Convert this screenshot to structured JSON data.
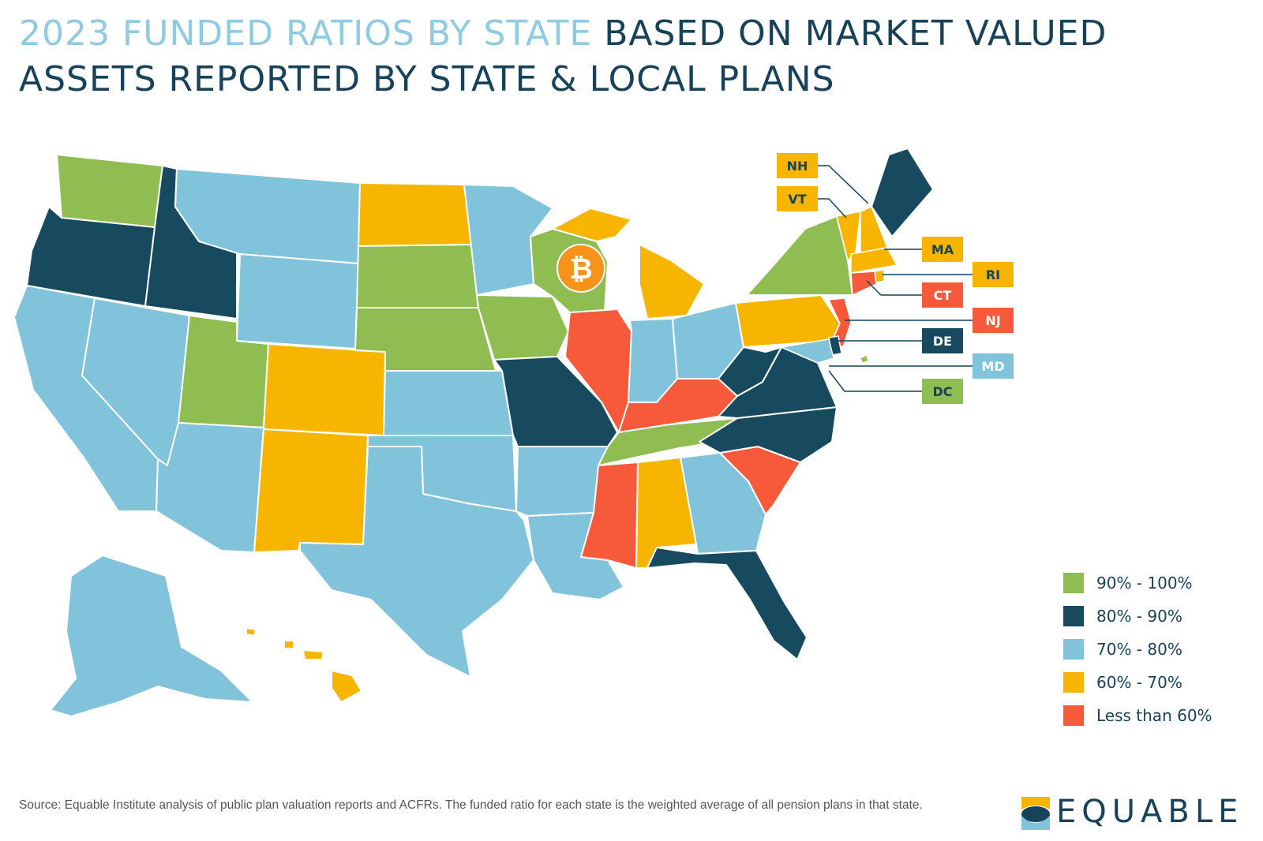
{
  "title": {
    "part1": "2023 FUNDED RATIOS BY STATE ",
    "part2": "BASED ON MARKET VALUED ASSETS REPORTED BY STATE & LOCAL PLANS"
  },
  "colors": {
    "g90": "#8fbd52",
    "g80": "#174a5e",
    "g70": "#82c3dc",
    "g60": "#f7b500",
    "lt60": "#f7593b"
  },
  "legend": [
    {
      "key": "g90",
      "label": "90% - 100%"
    },
    {
      "key": "g80",
      "label": "80% - 90%"
    },
    {
      "key": "g70",
      "label": "70% - 80%"
    },
    {
      "key": "g60",
      "label": "60% - 70%"
    },
    {
      "key": "lt60",
      "label": "Less than 60%"
    }
  ],
  "state_categories": {
    "WA": "g90",
    "OR": "g80",
    "ID": "g80",
    "MT": "g70",
    "WY": "g70",
    "CA": "g70",
    "NV": "g70",
    "UT": "g90",
    "AZ": "g70",
    "CO": "g60",
    "NM": "g60",
    "ND": "g60",
    "SD": "g90",
    "NE": "g90",
    "KS": "g70",
    "OK": "g70",
    "TX": "g70",
    "MN": "g70",
    "IA": "g90",
    "MO": "g80",
    "AR": "g70",
    "LA": "g70",
    "WI": "g90",
    "IL": "lt60",
    "MI": "g60",
    "IN": "g70",
    "OH": "g70",
    "KY": "lt60",
    "TN": "g90",
    "MS": "lt60",
    "AL": "g60",
    "GA": "g70",
    "FL": "g80",
    "SC": "lt60",
    "NC": "g80",
    "VA": "g80",
    "WV": "g80",
    "PA": "g60",
    "NY": "g90",
    "ME": "g80",
    "AK": "g70",
    "HI": "g60"
  },
  "callouts": [
    {
      "label": "NH",
      "key": "g60"
    },
    {
      "label": "VT",
      "key": "g60"
    },
    {
      "label": "MA",
      "key": "g60"
    },
    {
      "label": "RI",
      "key": "g60"
    },
    {
      "label": "CT",
      "key": "lt60"
    },
    {
      "label": "NJ",
      "key": "lt60"
    },
    {
      "label": "DE",
      "key": "g80"
    },
    {
      "label": "MD",
      "key": "g70"
    },
    {
      "label": "DC",
      "key": "g90"
    }
  ],
  "bitcoin": {
    "symbol": "₿",
    "color": "#f7931a"
  },
  "source": "Source: Equable Institute analysis of public plan valuation reports and ACFRs. The funded ratio for each state is the weighted average of all pension plans in that state.",
  "logo": {
    "text": "EQUABLE"
  }
}
